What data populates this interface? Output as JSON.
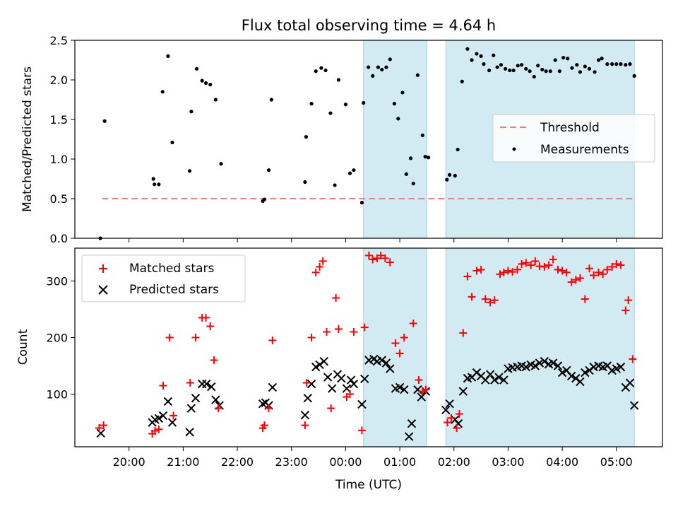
{
  "colors": {
    "shade": "#add8e6",
    "threshold": "#f08080",
    "measurements": "#000000",
    "matched": "#ff0000",
    "predicted": "#000000"
  },
  "chart_data": [
    {
      "type": "scatter",
      "title": "Flux total observing time = 4.64 h",
      "xlabel": "",
      "ylabel": "Matched/Predicted stars",
      "xlim": [
        19.0,
        29.85
      ],
      "ylim": [
        0.0,
        2.5
      ],
      "yticks": [
        0.0,
        0.5,
        1.0,
        1.5,
        2.0,
        2.5
      ],
      "ytick_labels": [
        "0.0",
        "0.5",
        "1.0",
        "1.5",
        "2.0",
        "2.5"
      ],
      "shaded_intervals": [
        [
          24.33,
          25.5
        ],
        [
          25.85,
          29.33
        ]
      ],
      "threshold": {
        "label": "Threshold",
        "value": 0.5,
        "x_range": [
          19.5,
          29.33
        ]
      },
      "legend": {
        "position": "center-right",
        "entries": [
          "Threshold",
          "Measurements"
        ]
      },
      "series": [
        {
          "name": "Measurements",
          "x": [
            19.47,
            19.55,
            20.45,
            20.47,
            20.55,
            20.62,
            20.72,
            20.8,
            21.12,
            21.15,
            21.25,
            21.35,
            21.42,
            21.5,
            21.6,
            21.7,
            22.47,
            22.5,
            22.58,
            22.63,
            23.25,
            23.27,
            23.37,
            23.45,
            23.55,
            23.63,
            23.72,
            23.8,
            23.87,
            24.0,
            24.08,
            24.15,
            24.3,
            24.33,
            24.42,
            24.5,
            24.6,
            24.67,
            24.75,
            24.82,
            24.9,
            24.97,
            25.05,
            25.12,
            25.2,
            25.25,
            25.33,
            25.42,
            25.47,
            25.53,
            25.87,
            25.92,
            26.02,
            26.07,
            26.15,
            26.25,
            26.33,
            26.42,
            26.5,
            26.55,
            26.65,
            26.73,
            26.8,
            26.87,
            26.95,
            27.03,
            27.1,
            27.18,
            27.25,
            27.33,
            27.4,
            27.48,
            27.55,
            27.63,
            27.7,
            27.78,
            27.87,
            27.95,
            28.02,
            28.1,
            28.18,
            28.27,
            28.33,
            28.42,
            28.5,
            28.6,
            28.67,
            28.73,
            28.83,
            28.92,
            29.0,
            29.08,
            29.17,
            29.25,
            29.33
          ],
          "y": [
            0.0,
            1.48,
            0.75,
            0.68,
            0.68,
            1.85,
            2.3,
            1.21,
            0.85,
            1.6,
            2.14,
            1.99,
            1.96,
            1.94,
            1.75,
            0.94,
            0.47,
            0.49,
            0.86,
            1.75,
            0.71,
            1.28,
            1.7,
            2.11,
            2.15,
            2.12,
            1.58,
            0.67,
            2.0,
            1.69,
            0.82,
            0.86,
            0.45,
            1.71,
            2.16,
            2.05,
            2.16,
            2.13,
            2.16,
            2.26,
            1.7,
            1.51,
            1.84,
            0.81,
            1.01,
            0.69,
            2.06,
            1.3,
            1.03,
            1.02,
            0.74,
            0.8,
            0.79,
            1.12,
            1.98,
            2.39,
            2.25,
            2.33,
            2.3,
            2.2,
            2.12,
            2.31,
            2.16,
            2.19,
            2.14,
            2.12,
            2.12,
            2.18,
            2.19,
            2.14,
            2.11,
            2.04,
            2.18,
            2.13,
            2.11,
            2.11,
            2.25,
            2.11,
            2.28,
            2.27,
            2.15,
            2.19,
            2.1,
            2.17,
            2.14,
            2.1,
            2.25,
            2.27,
            2.2,
            2.2,
            2.2,
            2.2,
            2.19,
            2.2,
            2.05
          ]
        }
      ]
    },
    {
      "type": "scatter",
      "title": "",
      "xlabel": "Time (UTC)",
      "ylabel": "Count",
      "xlim": [
        19.0,
        29.85
      ],
      "ylim": [
        7,
        358
      ],
      "yticks": [
        100,
        200,
        300
      ],
      "ytick_labels": [
        "100",
        "200",
        "300"
      ],
      "xticks": [
        20,
        21,
        22,
        23,
        24,
        25,
        26,
        27,
        28,
        29
      ],
      "xtick_labels": [
        "20:00",
        "21:00",
        "22:00",
        "23:00",
        "00:00",
        "01:00",
        "02:00",
        "03:00",
        "04:00",
        "05:00"
      ],
      "shaded_intervals": [
        [
          24.33,
          25.5
        ],
        [
          25.85,
          29.33
        ]
      ],
      "legend": {
        "position": "top-left",
        "entries": [
          "Matched stars",
          "Predicted stars"
        ]
      },
      "series": [
        {
          "name": "Matched stars",
          "marker": "plus",
          "x": [
            19.45,
            19.53,
            20.43,
            20.48,
            20.55,
            20.63,
            20.75,
            20.82,
            21.13,
            21.23,
            21.35,
            21.42,
            21.5,
            21.57,
            21.65,
            22.47,
            22.5,
            22.58,
            22.65,
            23.25,
            23.28,
            23.37,
            23.45,
            23.52,
            23.58,
            23.65,
            23.73,
            23.82,
            23.87,
            24.02,
            24.08,
            24.15,
            24.3,
            24.35,
            24.43,
            24.5,
            24.58,
            24.65,
            24.73,
            24.82,
            24.92,
            25.0,
            25.08,
            25.25,
            25.35,
            25.42,
            25.48,
            25.88,
            25.95,
            26.05,
            26.1,
            26.17,
            26.25,
            26.33,
            26.42,
            26.5,
            26.58,
            26.67,
            26.75,
            26.85,
            26.92,
            27.0,
            27.08,
            27.17,
            27.25,
            27.33,
            27.42,
            27.5,
            27.58,
            27.67,
            27.75,
            27.83,
            27.92,
            28.0,
            28.08,
            28.17,
            28.25,
            28.33,
            28.42,
            28.5,
            28.58,
            28.67,
            28.75,
            28.83,
            28.92,
            29.0,
            29.08,
            29.17,
            29.22,
            29.3
          ],
          "y": [
            40,
            45,
            30,
            35,
            38,
            115,
            200,
            62,
            120,
            200,
            235,
            235,
            220,
            160,
            75,
            40,
            45,
            75,
            195,
            45,
            120,
            200,
            315,
            325,
            335,
            210,
            75,
            270,
            215,
            95,
            100,
            210,
            36,
            218,
            345,
            338,
            340,
            345,
            340,
            333,
            190,
            172,
            200,
            225,
            125,
            105,
            108,
            50,
            58,
            40,
            65,
            208,
            308,
            272,
            318,
            320,
            268,
            262,
            266,
            312,
            315,
            318,
            316,
            320,
            330,
            332,
            328,
            335,
            326,
            325,
            328,
            338,
            320,
            318,
            315,
            298,
            302,
            305,
            268,
            322,
            310,
            315,
            312,
            320,
            325,
            330,
            328,
            248,
            266,
            162
          ]
        },
        {
          "name": "Predicted stars",
          "marker": "x",
          "x": [
            19.48,
            20.43,
            20.48,
            20.55,
            20.63,
            20.72,
            20.8,
            21.12,
            21.15,
            21.23,
            21.35,
            21.43,
            21.52,
            21.6,
            21.67,
            22.47,
            22.52,
            22.58,
            22.65,
            23.25,
            23.3,
            23.37,
            23.45,
            23.52,
            23.6,
            23.67,
            23.75,
            23.85,
            23.92,
            24.02,
            24.1,
            24.15,
            24.3,
            24.35,
            24.43,
            24.52,
            24.58,
            24.67,
            24.75,
            24.82,
            24.92,
            25.0,
            25.08,
            25.17,
            25.22,
            25.33,
            25.4,
            25.48,
            25.85,
            25.92,
            26.02,
            26.08,
            26.17,
            26.25,
            26.33,
            26.42,
            26.5,
            26.58,
            26.67,
            26.75,
            26.83,
            26.92,
            27.0,
            27.08,
            27.17,
            27.25,
            27.33,
            27.42,
            27.5,
            27.58,
            27.67,
            27.75,
            27.83,
            27.92,
            28.0,
            28.08,
            28.17,
            28.25,
            28.33,
            28.42,
            28.5,
            28.58,
            28.67,
            28.75,
            28.83,
            28.92,
            29.0,
            29.08,
            29.17,
            29.25,
            29.33
          ],
          "y": [
            31,
            50,
            55,
            57,
            62,
            87,
            50,
            33,
            75,
            93,
            118,
            118,
            113,
            90,
            80,
            83,
            85,
            80,
            112,
            63,
            93,
            118,
            148,
            152,
            158,
            130,
            110,
            135,
            128,
            110,
            125,
            118,
            82,
            127,
            160,
            162,
            158,
            160,
            155,
            145,
            110,
            112,
            108,
            25,
            48,
            108,
            95,
            105,
            72,
            83,
            55,
            48,
            105,
            128,
            130,
            138,
            132,
            125,
            135,
            125,
            130,
            125,
            145,
            147,
            148,
            150,
            148,
            152,
            150,
            155,
            158,
            153,
            155,
            150,
            138,
            142,
            132,
            128,
            122,
            138,
            142,
            148,
            150,
            148,
            150,
            142,
            145,
            148,
            112,
            120,
            80
          ]
        }
      ]
    }
  ]
}
